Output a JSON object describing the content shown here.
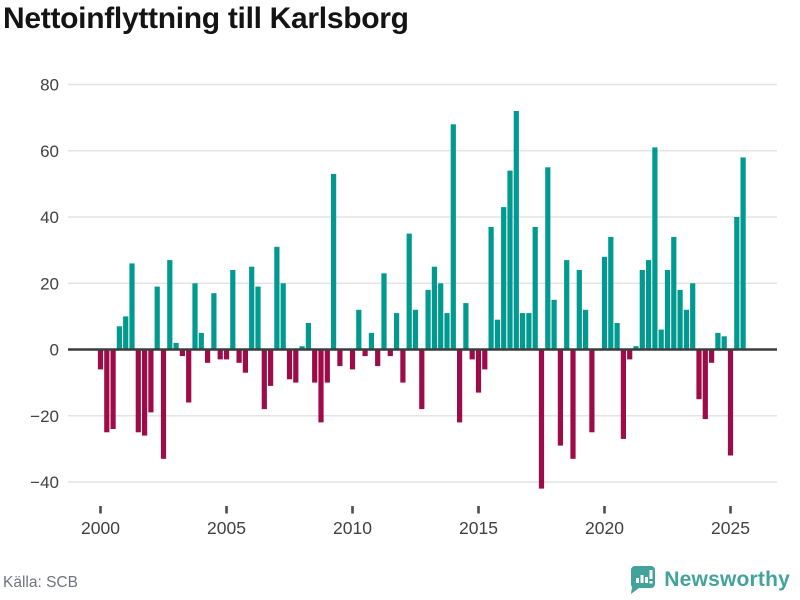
{
  "title": "Nettoinflyttning till Karlsborg",
  "source": "Källa: SCB",
  "brand": "Newsworthy",
  "colors": {
    "positive": "#009a90",
    "negative": "#9d0b49",
    "grid": "#e4e4e4",
    "zero_line": "#3c3c3c",
    "axis_text": "#414141",
    "tick_mark": "#4d4d4d",
    "title_text": "#141414",
    "source_text": "#6f737c",
    "brand_teal": "#43a39c"
  },
  "chart_data": {
    "type": "bar",
    "title": "Nettoinflyttning till Karlsborg",
    "xlabel": "",
    "ylabel": "",
    "ylim": [
      -48,
      88
    ],
    "grid": "horizontal",
    "legend": "none",
    "frequency": "quarterly",
    "start_period": "2000-Q1",
    "end_period": "2025-Q3",
    "x_tick_labels": [
      "2000",
      "2005",
      "2010",
      "2015",
      "2020",
      "2025"
    ],
    "y_ticks": [
      80,
      60,
      40,
      20,
      0,
      -20,
      -40
    ],
    "y_tick_labels": [
      "80",
      "60",
      "40",
      "20",
      "0",
      "−20",
      "−40"
    ],
    "series": [
      {
        "name": "Nettoinflyttning",
        "values": [
          -6,
          -25,
          -24,
          7,
          10,
          26,
          -25,
          -26,
          -19,
          19,
          -33,
          27,
          2,
          -2,
          -16,
          20,
          5,
          -4,
          17,
          -3,
          -3,
          24,
          -4,
          -7,
          25,
          19,
          -18,
          -11,
          31,
          20,
          -9,
          -10,
          1,
          8,
          -10,
          -22,
          -10,
          53,
          -5,
          0,
          -6,
          12,
          -2,
          5,
          -5,
          23,
          -2,
          11,
          -10,
          35,
          12,
          -18,
          18,
          25,
          20,
          11,
          68,
          -22,
          14,
          -3,
          -13,
          -6,
          37,
          9,
          43,
          54,
          72,
          11,
          11,
          37,
          -42,
          55,
          15,
          -29,
          27,
          -33,
          24,
          12,
          -25,
          0,
          28,
          34,
          8,
          -27,
          -3,
          1,
          24,
          27,
          61,
          6,
          24,
          34,
          18,
          12,
          20,
          -15,
          -21,
          -4,
          5,
          4,
          -32,
          40,
          58
        ]
      }
    ]
  }
}
